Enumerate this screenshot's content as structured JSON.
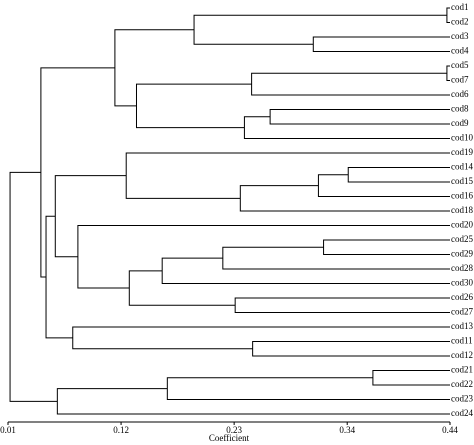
{
  "chart_data": {
    "type": "dendrogram",
    "x_label": "Coefficient",
    "xlim": [
      0.01,
      0.44
    ],
    "xticks": [
      0.01,
      0.12,
      0.23,
      0.34,
      0.44
    ],
    "color": "#000000",
    "leaves": [
      "cod1",
      "cod2",
      "cod3",
      "cod4",
      "cod5",
      "cod7",
      "cod6",
      "cod8",
      "cod9",
      "cod10",
      "cod19",
      "cod14",
      "cod15",
      "cod16",
      "cod18",
      "cod20",
      "cod25",
      "cod29",
      "cod28",
      "cod30",
      "cod26",
      "cod27",
      "cod13",
      "cod11",
      "cod12",
      "cod21",
      "cod22",
      "cod23",
      "cod24"
    ],
    "nodes": [
      {
        "children": [
          0,
          1
        ],
        "height": 0.437
      },
      {
        "children": [
          2,
          3
        ],
        "height": 0.307
      },
      {
        "children": [
          29,
          30
        ],
        "height": 0.191
      },
      {
        "children": [
          4,
          5
        ],
        "height": 0.437
      },
      {
        "children": [
          32,
          6
        ],
        "height": 0.247
      },
      {
        "children": [
          7,
          8
        ],
        "height": 0.265
      },
      {
        "children": [
          34,
          9
        ],
        "height": 0.24
      },
      {
        "children": [
          33,
          35
        ],
        "height": 0.135
      },
      {
        "children": [
          31,
          36
        ],
        "height": 0.114
      },
      {
        "children": [
          11,
          12
        ],
        "height": 0.341
      },
      {
        "children": [
          38,
          13
        ],
        "height": 0.312
      },
      {
        "children": [
          39,
          14
        ],
        "height": 0.236
      },
      {
        "children": [
          10,
          40
        ],
        "height": 0.125
      },
      {
        "children": [
          16,
          17
        ],
        "height": 0.317
      },
      {
        "children": [
          42,
          18
        ],
        "height": 0.219
      },
      {
        "children": [
          43,
          19
        ],
        "height": 0.16
      },
      {
        "children": [
          20,
          21
        ],
        "height": 0.231
      },
      {
        "children": [
          44,
          45
        ],
        "height": 0.128
      },
      {
        "children": [
          15,
          46
        ],
        "height": 0.078
      },
      {
        "children": [
          41,
          47
        ],
        "height": 0.056
      },
      {
        "children": [
          23,
          24
        ],
        "height": 0.248
      },
      {
        "children": [
          22,
          49
        ],
        "height": 0.073
      },
      {
        "children": [
          48,
          50
        ],
        "height": 0.047
      },
      {
        "children": [
          37,
          51
        ],
        "height": 0.042
      },
      {
        "children": [
          25,
          26
        ],
        "height": 0.365
      },
      {
        "children": [
          53,
          27
        ],
        "height": 0.165
      },
      {
        "children": [
          54,
          28
        ],
        "height": 0.058
      },
      {
        "children": [
          52,
          55
        ],
        "height": 0.012
      }
    ]
  }
}
